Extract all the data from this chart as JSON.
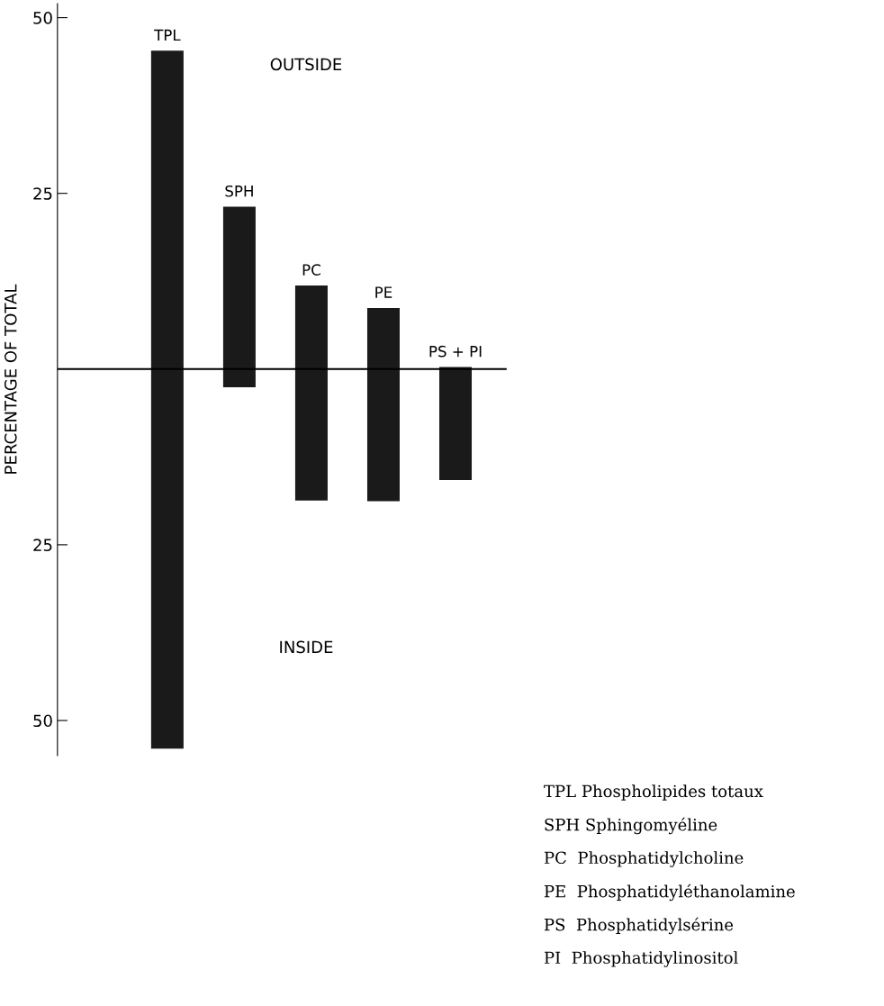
{
  "chart_data": {
    "type": "bar",
    "ylabel": "PERCENTAGE OF TOTAL",
    "categories": [
      "TPL",
      "SPH",
      "PC",
      "PE",
      "PS + PI"
    ],
    "base": [
      -54,
      -2.6,
      -18.7,
      -18.8,
      -15.8
    ],
    "values": [
      99.3,
      25.7,
      30.6,
      27.5,
      16.1
    ],
    "color": "#1a1a1a",
    "ylim": [
      -55,
      52
    ],
    "yticks": [
      50,
      25,
      {
        "value": -25,
        "label": "25"
      },
      {
        "value": -50,
        "label": "50"
      }
    ],
    "tick_labels": "y",
    "grid": false,
    "ref_lines": [
      {
        "axis": "y",
        "value": 0,
        "label": null,
        "color": "#000000"
      }
    ],
    "annotations": [
      "OUTSIDE",
      "INSIDE",
      "TPL Phospholipides totaux",
      "SPH Sphingomyéline",
      "PC  Phosphatidylcholine",
      "PE  Phosphatidyléthanolamine",
      "PS  Phosphatidylsérine",
      "PI  Phosphatidylinositol"
    ]
  }
}
